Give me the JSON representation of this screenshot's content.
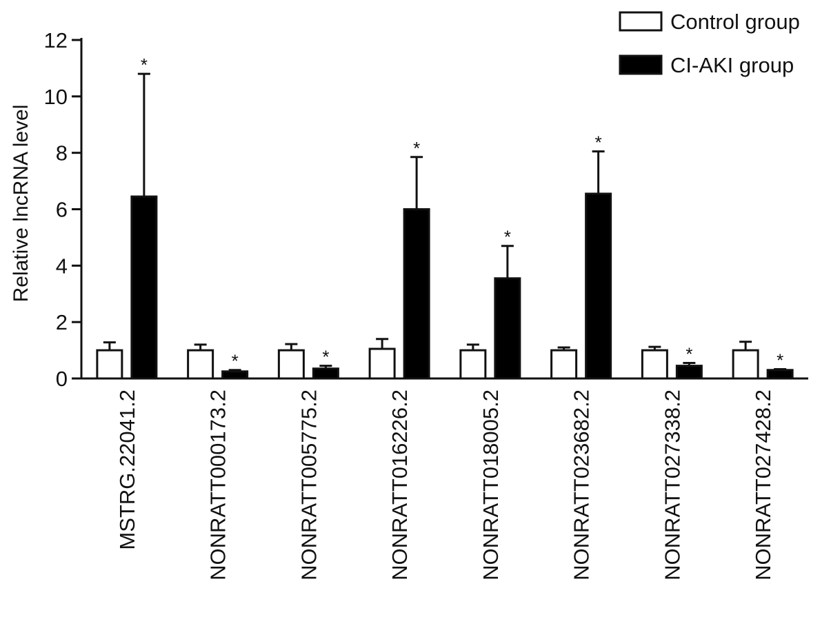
{
  "chart_data": {
    "type": "bar",
    "title": "",
    "xlabel": "",
    "ylabel": "Relative lncRNA level",
    "ylim": [
      0,
      12
    ],
    "yticks": [
      0,
      2,
      4,
      6,
      8,
      10,
      12
    ],
    "grid": false,
    "legend_position": "top-right",
    "categories": [
      "MSTRG.22041.2",
      "NONRATT000173.2",
      "NONRATT005775.2",
      "NONRATT016226.2",
      "NONRATT018005.2",
      "NONRATT023682.2",
      "NONRATT027338.2",
      "NONRATT027428.2"
    ],
    "series": [
      {
        "name": "Control group",
        "fill": "#ffffff",
        "values": [
          1.0,
          1.0,
          1.0,
          1.05,
          1.0,
          1.0,
          1.0,
          1.0
        ],
        "errors": [
          0.28,
          0.2,
          0.22,
          0.35,
          0.2,
          0.1,
          0.12,
          0.3
        ],
        "significance": [
          "",
          "",
          "",
          "",
          "",
          "",
          "",
          ""
        ]
      },
      {
        "name": "CI-AKI group",
        "fill": "#000000",
        "values": [
          6.45,
          0.25,
          0.35,
          6.0,
          3.55,
          6.55,
          0.45,
          0.3
        ],
        "errors": [
          4.35,
          0.05,
          0.1,
          1.85,
          1.15,
          1.5,
          0.1,
          0.03
        ],
        "significance": [
          "*",
          "*",
          "*",
          "*",
          "*",
          "*",
          "*",
          "*"
        ]
      }
    ]
  },
  "colors": {
    "axis": "#111111",
    "control_fill": "#ffffff",
    "case_fill": "#000000"
  }
}
